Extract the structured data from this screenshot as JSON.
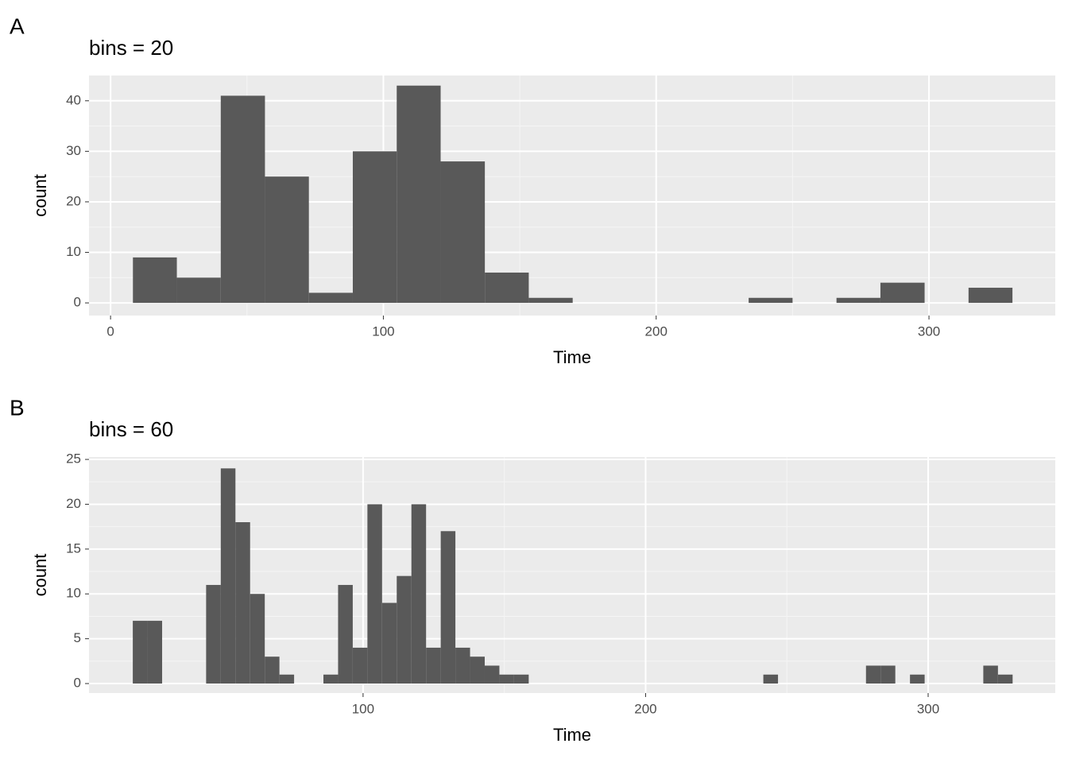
{
  "chart_data": [
    {
      "type": "histogram",
      "tag": "A",
      "title": "bins = 20",
      "x_label": "Time",
      "y_label": "count",
      "color": "#595959",
      "bins": [
        8.2,
        24.3,
        40.4,
        56.6,
        72.7,
        88.8,
        104.9,
        121.0,
        137.2,
        153.3,
        169.4,
        185.5,
        201.6,
        217.8,
        233.9,
        250.0,
        266.1,
        282.2,
        298.4,
        314.5,
        330.6
      ],
      "values": [
        9,
        5,
        41,
        25,
        2,
        30,
        43,
        28,
        6,
        1,
        0,
        0,
        0,
        0,
        1,
        0,
        1,
        4,
        0,
        3
      ],
      "xlim": [
        -7.9,
        346.3
      ],
      "ylim": [
        -2.5,
        45.0
      ],
      "xticks": [
        0,
        100,
        200,
        300
      ],
      "yticks": [
        0,
        10,
        20,
        30,
        40
      ],
      "grid": true
    },
    {
      "type": "histogram",
      "tag": "B",
      "title": "bins = 60",
      "x_label": "Time",
      "y_label": "count",
      "color": "#595959",
      "bins": [
        18.5,
        23.69,
        28.88,
        34.07,
        39.26,
        44.45,
        49.64,
        54.83,
        60.02,
        65.21,
        70.4,
        75.59,
        80.78,
        85.97,
        91.16,
        96.35,
        101.54,
        106.73,
        111.92,
        117.11,
        122.3,
        127.49,
        132.68,
        137.87,
        143.06,
        148.25,
        153.44,
        158.63,
        163.82,
        169.01,
        174.2,
        179.39,
        184.58,
        189.77,
        194.96,
        200.15,
        205.34,
        210.53,
        215.72,
        220.91,
        226.1,
        231.29,
        236.48,
        241.67,
        246.86,
        252.05,
        257.24,
        262.43,
        267.62,
        272.81,
        278.0,
        283.19,
        288.38,
        293.57,
        298.76,
        303.95,
        309.14,
        314.33,
        319.52,
        324.71,
        329.9
      ],
      "values": [
        7,
        7,
        0,
        0,
        0,
        11,
        24,
        18,
        10,
        3,
        1,
        0,
        0,
        1,
        11,
        4,
        20,
        9,
        12,
        20,
        4,
        17,
        4,
        3,
        2,
        1,
        1,
        0,
        0,
        0,
        0,
        0,
        0,
        0,
        0,
        0,
        0,
        0,
        0,
        0,
        0,
        0,
        0,
        1,
        0,
        0,
        0,
        0,
        0,
        0,
        2,
        2,
        0,
        1,
        0,
        0,
        0,
        0,
        2,
        1
      ],
      "xlim": [
        3.0,
        345.0
      ],
      "ylim": [
        -1.06,
        25.27
      ],
      "xticks": [
        100,
        200,
        300
      ],
      "yticks": [
        0,
        5,
        10,
        15,
        20,
        25
      ],
      "grid": true
    }
  ]
}
